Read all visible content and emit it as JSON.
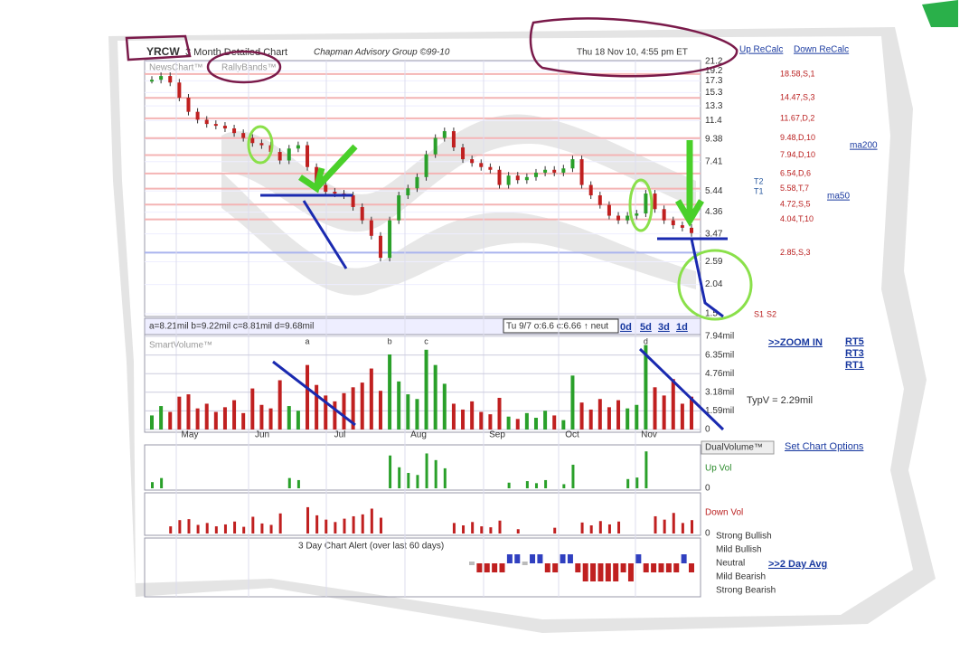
{
  "header": {
    "ticker": "YRCW",
    "chart_name": "3 Month Detailed Chart",
    "provider": "Chapman Advisory Group ©99-10",
    "timestamp": "Thu 18 Nov 10, 4:55 pm ET",
    "links": [
      "Up ReCalc",
      "Down ReCalc"
    ]
  },
  "price_panel": {
    "tabs": [
      "NewsChart™",
      "RallyBands™"
    ],
    "log_scale": true,
    "ylim": [
      1.5,
      21.2
    ],
    "yticks": [
      21.2,
      19.2,
      17.3,
      15.3,
      13.3,
      11.4,
      9.38,
      7.41,
      5.44,
      4.36,
      3.47,
      2.59,
      2.04,
      1.5
    ],
    "levels": [
      {
        "value": 18.58,
        "label": "18.58,S,1"
      },
      {
        "value": 14.47,
        "label": "14.47,S,3"
      },
      {
        "value": 11.67,
        "label": "11.67,D,2"
      },
      {
        "value": 9.48,
        "label": "9.48,D,10"
      },
      {
        "value": 7.94,
        "label": "7.94,D,10"
      },
      {
        "value": 6.54,
        "label": "6.54,D,6"
      },
      {
        "value": 5.58,
        "label": "5.58,T,7"
      },
      {
        "value": 4.72,
        "label": "4.72,S,5"
      },
      {
        "value": 4.04,
        "label": "4.04,T,10"
      },
      {
        "value": 2.85,
        "label": "2.85,S,3"
      }
    ],
    "markers": [
      "T2",
      "T1",
      "S1",
      "S2",
      "ma200",
      "ma50"
    ],
    "closes": [
      17.5,
      18.2,
      17.0,
      14.5,
      12.5,
      11.5,
      11.0,
      10.8,
      10.5,
      10.0,
      9.5,
      9.0,
      8.8,
      8.2,
      7.5,
      8.5,
      8.8,
      7.0,
      5.8,
      5.4,
      5.3,
      5.2,
      4.6,
      4.0,
      3.4,
      2.7,
      4.0,
      5.2,
      5.6,
      6.3,
      8.0,
      9.5,
      10.2,
      8.6,
      7.6,
      7.3,
      7.0,
      6.8,
      5.8,
      6.4,
      6.1,
      6.3,
      6.6,
      6.8,
      6.6,
      6.9,
      7.6,
      5.8,
      5.2,
      4.7,
      4.2,
      4.0,
      4.2,
      4.3,
      5.3,
      4.5,
      4.0,
      3.8,
      3.7,
      3.5
    ]
  },
  "info_bar": {
    "stats": "a=8.21mil  b=9.22mil  c=8.81mil  d=9.68mil",
    "quote": "Tu 9/7 o:6.6 c:6.66 ↑ neut",
    "periods": [
      "0d",
      "5d",
      "3d",
      "1d"
    ]
  },
  "volume_panel": {
    "title": "SmartVolume™",
    "peak_labels": [
      "a",
      "b",
      "c",
      "d"
    ],
    "ylim": [
      0,
      7.94
    ],
    "yticks": [
      {
        "value": 7.94,
        "label": "7.94mil"
      },
      {
        "value": 6.35,
        "label": "6.35mil"
      },
      {
        "value": 4.76,
        "label": "4.76mil"
      },
      {
        "value": 3.18,
        "label": "3.18mil"
      },
      {
        "value": 1.59,
        "label": "1.59mil"
      },
      0
    ],
    "typical": "TypV = 2.29mil",
    "months": [
      "May",
      "Jun",
      "Jul",
      "Aug",
      "Sep",
      "Oct",
      "Nov"
    ],
    "volumes": [
      1.2,
      2.0,
      1.5,
      2.8,
      3.0,
      1.8,
      2.2,
      1.5,
      1.9,
      2.5,
      1.4,
      3.5,
      2.1,
      1.8,
      4.2,
      2.0,
      1.6,
      5.5,
      3.8,
      2.9,
      2.4,
      3.1,
      3.6,
      4.0,
      5.2,
      3.3,
      6.4,
      4.1,
      3.0,
      2.6,
      6.8,
      5.5,
      3.9,
      2.2,
      1.7,
      2.4,
      1.5,
      1.3,
      2.7,
      1.1,
      0.9,
      1.4,
      1.0,
      1.6,
      1.2,
      0.8,
      4.6,
      2.3,
      1.7,
      2.6,
      1.9,
      2.5,
      1.8,
      2.1,
      7.2,
      3.6,
      2.9,
      4.3,
      2.2,
      2.8
    ]
  },
  "side_links": {
    "zoom": ">>ZOOM IN",
    "rt": [
      "RT5",
      "RT3",
      "RT1"
    ],
    "options": "Set Chart Options",
    "avg": ">>2 Day Avg"
  },
  "dual_volume": {
    "title": "DualVolume™",
    "up_label": "Up Vol",
    "down_label": "Down Vol",
    "zero": "0"
  },
  "alert_panel": {
    "title": "3 Day Chart Alert (over last 60 days)",
    "levels": [
      "Strong Bullish",
      "Mild Bullish",
      "Neutral",
      "Mild Bearish",
      "Strong Bearish"
    ],
    "values": [
      0,
      -1,
      -1,
      -1,
      -1,
      1,
      1,
      0,
      1,
      1,
      -1,
      -1,
      1,
      1,
      -1,
      -2,
      -2,
      -2,
      -2,
      -2,
      -1,
      -2,
      1,
      -1,
      -1,
      -1,
      -1,
      -1,
      1,
      -1
    ]
  }
}
